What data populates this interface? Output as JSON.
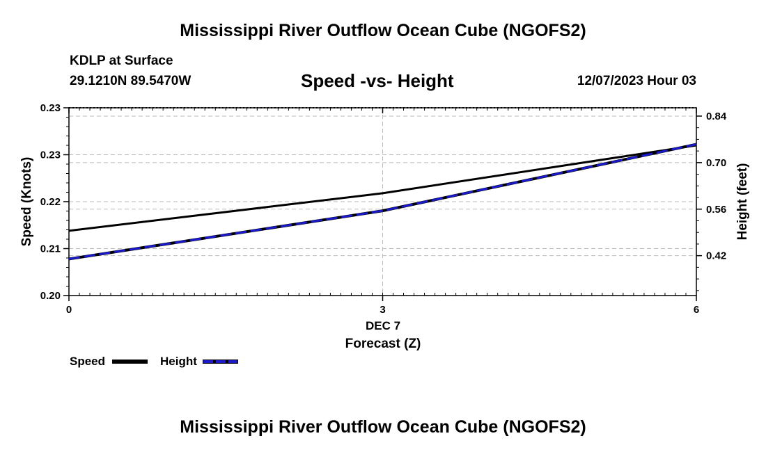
{
  "header": {
    "title": "Mississippi River Outflow Ocean Cube (NGOFS2)",
    "station": "KDLP at Surface",
    "coords": "29.1210N  89.5470W",
    "datetime": "12/07/2023 Hour 03"
  },
  "footer": {
    "title": "Mississippi River Outflow Ocean Cube (NGOFS2)"
  },
  "chart_data": {
    "type": "line",
    "title": "Speed -vs- Height",
    "xlabel": "Forecast (Z)",
    "x_date_label": "DEC 7",
    "ylabel_left": "Speed (Knots)",
    "ylabel_right": "Height (feet)",
    "x_ticks": [
      "0",
      "3",
      "6"
    ],
    "x_range": [
      0,
      6
    ],
    "y_left_ticks": [
      "0.20",
      "0.21",
      "0.22",
      "0.23",
      "0.23"
    ],
    "y_left_range": [
      0.2,
      0.24
    ],
    "y_right_ticks": [
      "0.42",
      "0.56",
      "0.70",
      "0.84"
    ],
    "y_right_range": [
      0.3,
      0.865
    ],
    "grid": true,
    "series": [
      {
        "name": "Speed",
        "axis": "left",
        "color": "#000000",
        "x": [
          0,
          3,
          6
        ],
        "values": [
          0.2138,
          0.2218,
          0.232
        ]
      },
      {
        "name": "Height",
        "axis": "right",
        "color": "#1a1acc",
        "x": [
          0,
          3,
          6
        ],
        "values": [
          0.41,
          0.555,
          0.755
        ]
      }
    ],
    "legend": [
      {
        "label": "Speed",
        "color": "#000000",
        "style": "solid"
      },
      {
        "label": "Height",
        "color": "#1a1acc",
        "style": "dashed"
      }
    ]
  }
}
